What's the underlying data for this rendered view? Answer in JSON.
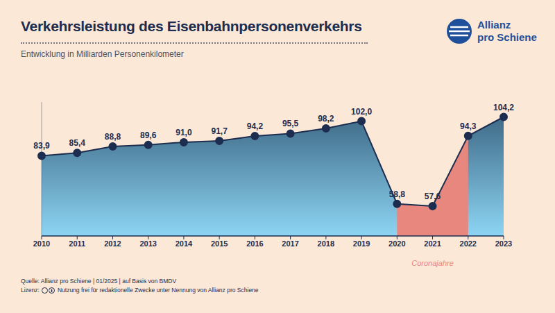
{
  "chart_data": {
    "type": "area",
    "title": "Verkehrsleistung des Eisenbahnpersonenverkehrs",
    "subtitle": "Entwicklung in Milliarden Personenkilometer",
    "categories": [
      "2010",
      "2011",
      "2012",
      "2013",
      "2014",
      "2015",
      "2016",
      "2017",
      "2018",
      "2019",
      "2020",
      "2021",
      "2022",
      "2023"
    ],
    "values": [
      83.9,
      85.4,
      88.8,
      89.6,
      91.0,
      91.7,
      94.2,
      95.5,
      98.2,
      102.0,
      58.8,
      57.6,
      94.3,
      104.2
    ],
    "value_labels": [
      "83,9",
      "85,4",
      "88,8",
      "89,6",
      "91,0",
      "91,7",
      "94,2",
      "95,5",
      "98,2",
      "102,0",
      "58,8",
      "57,6",
      "94,3",
      "104,2"
    ],
    "color": "#1d2d4f",
    "ylim": [
      42,
      112
    ],
    "yticks": [],
    "tick_labels": "x",
    "data_labels": true,
    "marker": "circle",
    "grid": false,
    "annotations": [
      {
        "text": "Coronajahre",
        "from": "2020",
        "to": "2022",
        "color": "#e8877d"
      }
    ],
    "logo": [
      "Allianz",
      "pro Schiene"
    ],
    "source": "Quelle: Allianz pro Schiene | 01/2025 | auf Basis von BMDV",
    "license_label": "Lizenz:",
    "license": "Nutzung frei für redaktionelle Zwecke unter Nennung von Allianz pro Schiene"
  }
}
